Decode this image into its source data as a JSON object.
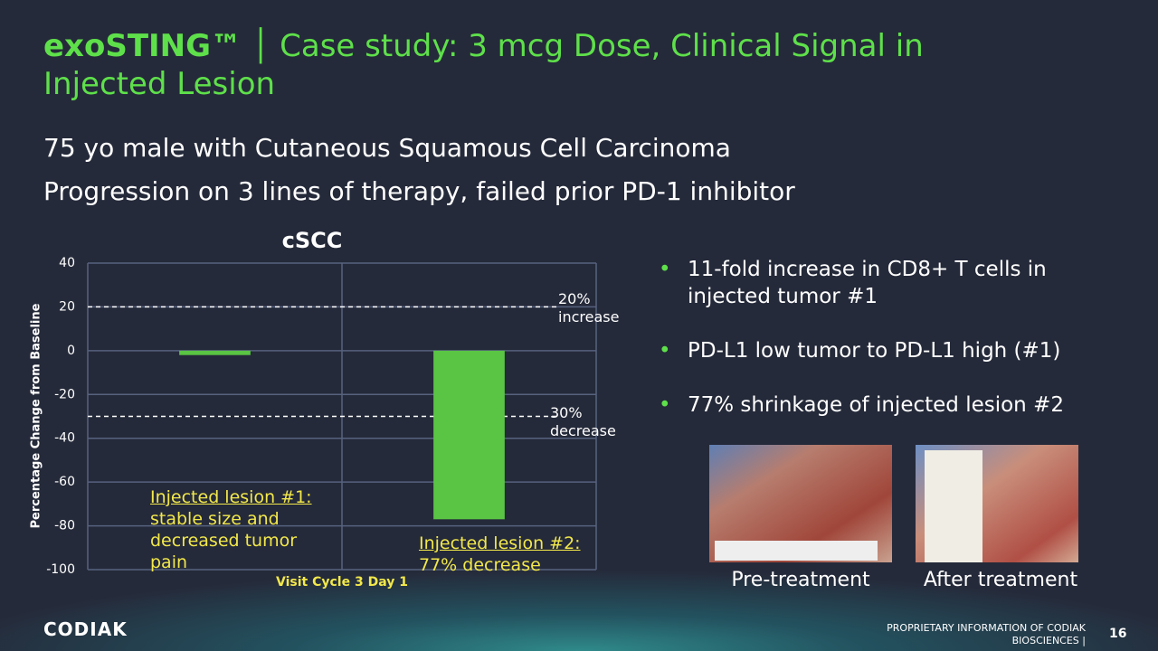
{
  "title_brand": "exoSTING™",
  "title_text": "Case study: 3 mcg Dose, Clinical Signal in Injected Lesion",
  "subtitle_lines": [
    "75 yo male with Cutaneous Squamous Cell Carcinoma",
    "Progression on 3 lines of therapy, failed prior PD-1 inhibitor"
  ],
  "chart_data": {
    "type": "bar",
    "title": "cSCC",
    "y_label": "Percentage Change from Baseline",
    "x_label": "Visit Cycle 3 Day 1",
    "categories": [
      null,
      null
    ],
    "values": [
      -2,
      -77
    ],
    "color": "#5ac544",
    "ylim": [
      -100,
      40
    ],
    "yticks": [
      -100,
      -80,
      -60,
      -40,
      -20,
      0,
      20,
      40
    ],
    "grid": true,
    "reference_lines": [
      {
        "value": 20,
        "label": "20% increase"
      },
      {
        "value": -30,
        "label": "30% decrease"
      }
    ],
    "annotations": [
      {
        "heading": "Injected lesion #1:",
        "text": "stable size and decreased tumor pain"
      },
      {
        "heading": "Injected lesion #2:",
        "text": "77% decrease"
      }
    ]
  },
  "bullets": [
    "11-fold increase in CD8+ T cells in injected tumor #1",
    "PD-L1 low tumor to PD-L1 high (#1)",
    "77% shrinkage of injected lesion #2"
  ],
  "photo_captions": [
    "Pre-treatment",
    "After treatment"
  ],
  "footer": {
    "logo": "CODIAK",
    "notice": "PROPRIETARY INFORMATION OF CODIAK BIOSCIENCES |",
    "page": "16"
  }
}
